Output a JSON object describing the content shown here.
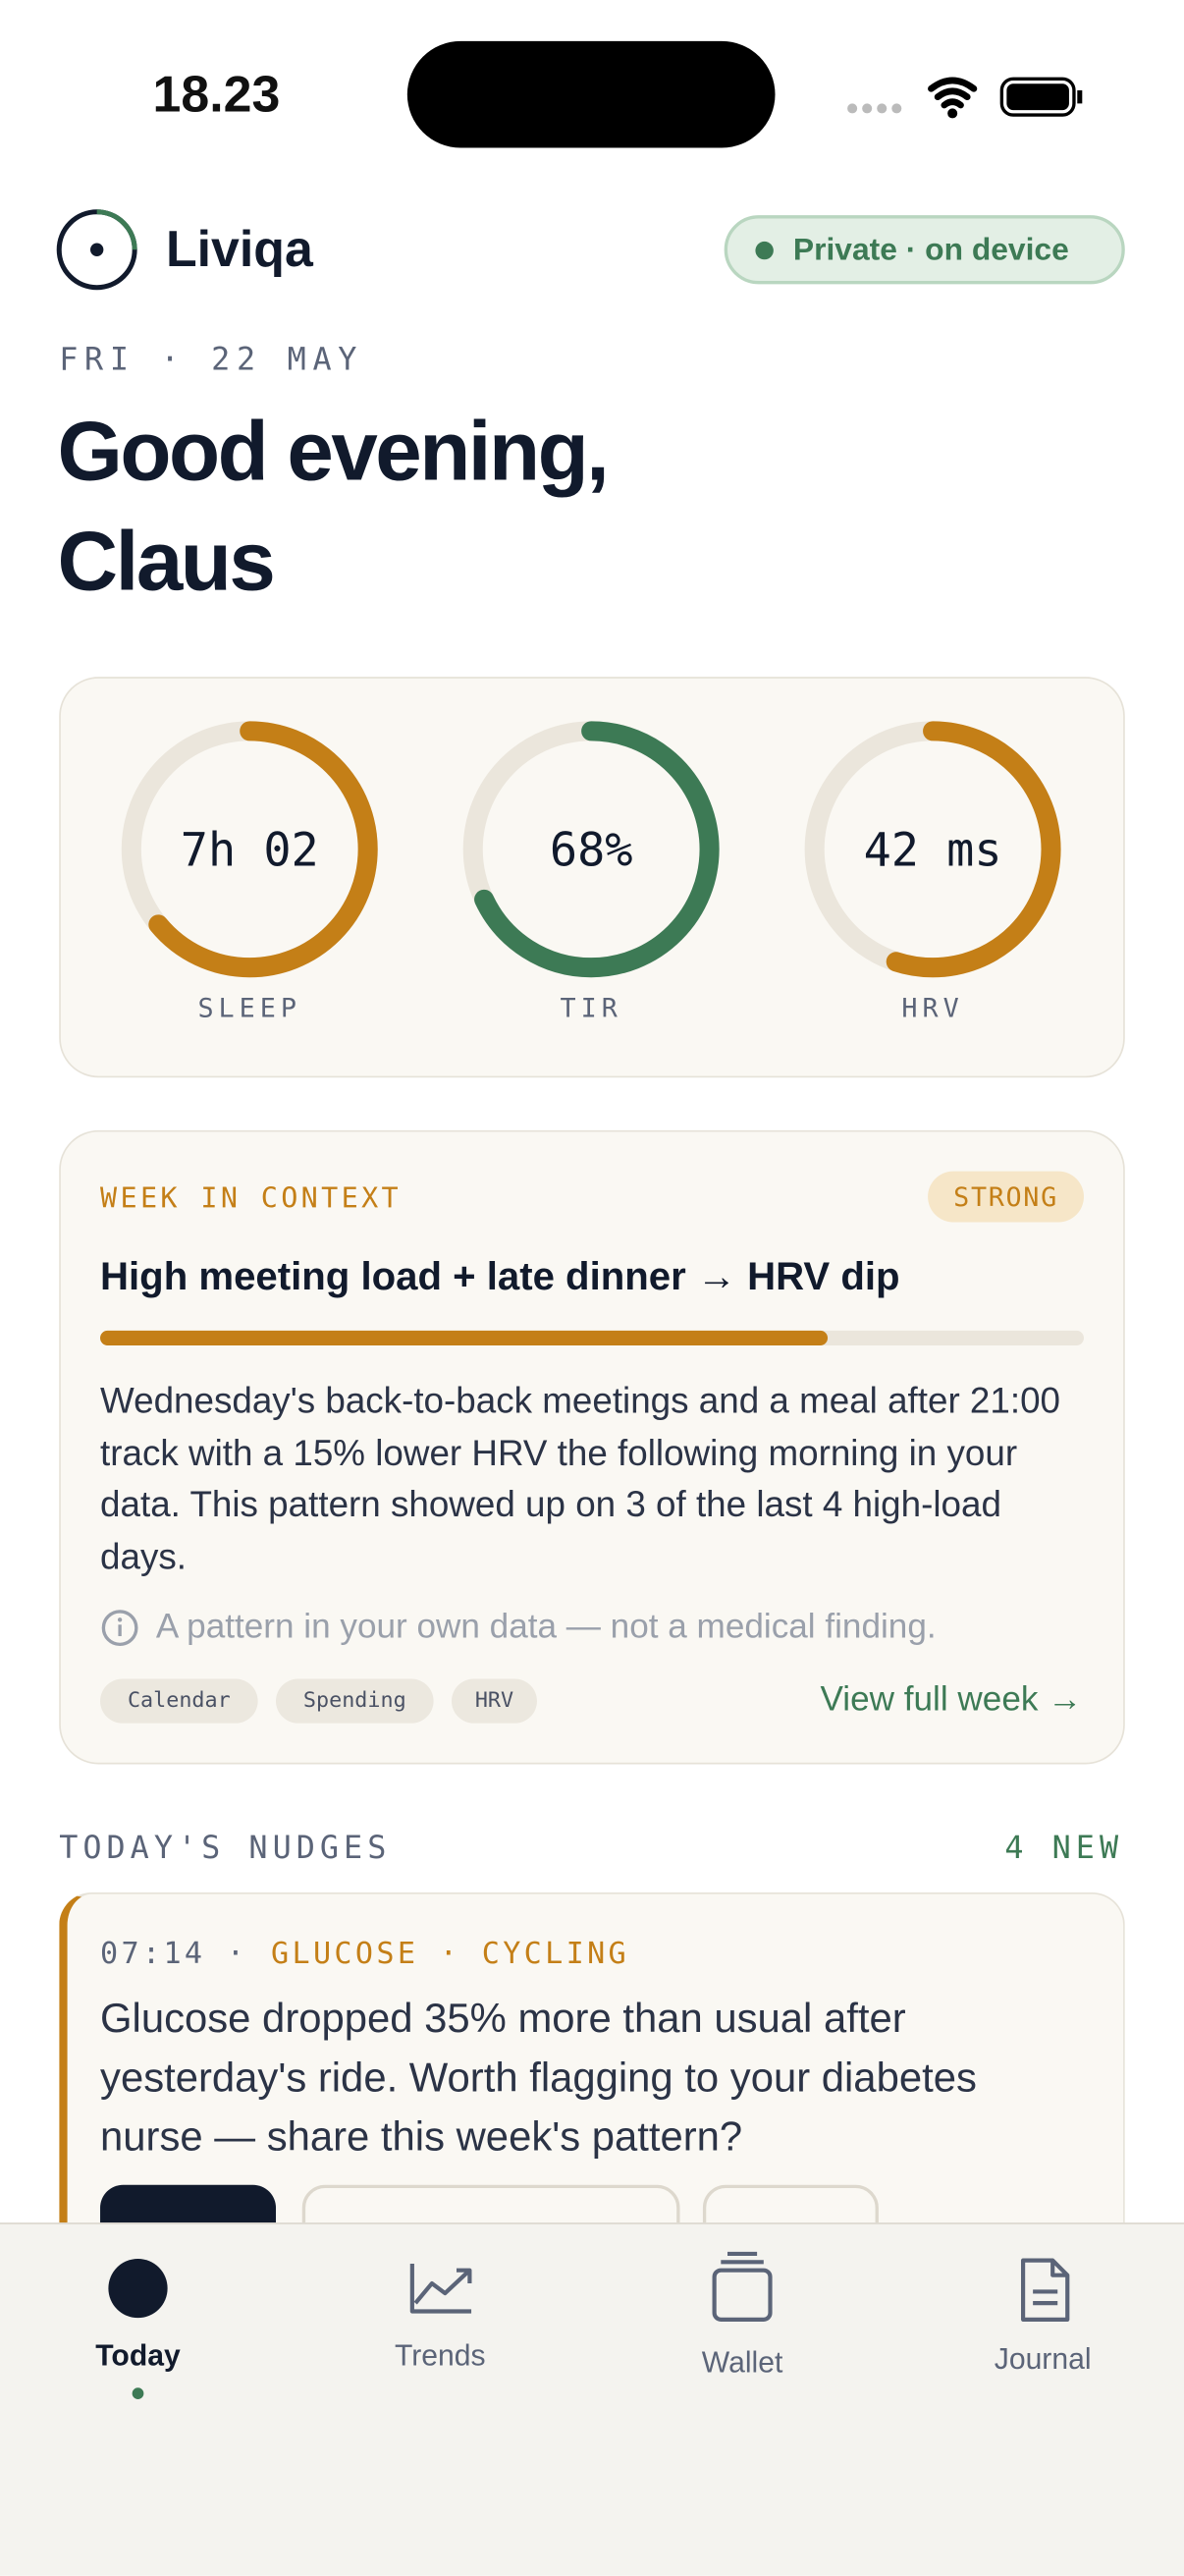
{
  "status_bar": {
    "time": "18.23"
  },
  "header": {
    "brand": "Liviqa",
    "privacy_badge": "Private · on device",
    "date": "FRI · 22 MAY",
    "greeting_line1": "Good evening,",
    "greeting_line2": "Claus"
  },
  "rings": [
    {
      "value": "7h 02",
      "label": "SLEEP",
      "progress": 0.64,
      "color": "#c47f17"
    },
    {
      "value": "68%",
      "label": "TIR",
      "progress": 0.68,
      "color": "#3d7a55"
    },
    {
      "value": "42 ms",
      "label": "HRV",
      "progress": 0.55,
      "color": "#c47f17"
    }
  ],
  "context_card": {
    "eyebrow": "WEEK IN CONTEXT",
    "strength": "STRONG",
    "title": "High meeting load + late dinner → HRV dip",
    "strength_progress": 0.74,
    "body": "Wednesday's back-to-back meetings and a meal after 21:00 track with a 15% lower HRV the following morning in your data. This pattern showed up on 3 of the last 4 high-load days.",
    "disclaimer": "A pattern in your own data — not a medical finding.",
    "sources": [
      "Calendar",
      "Spending",
      "HRV"
    ],
    "link": "View full week →"
  },
  "nudges": {
    "heading": "TODAY'S NUDGES",
    "count": "4 NEW",
    "items": [
      {
        "time": "07:14 ·",
        "topic": "GLUCOSE · CYCLING",
        "text": "Glucose dropped 35% more than usual after yesterday's ride. Worth flagging to your diabetes nurse — share this week's pattern?"
      }
    ]
  },
  "tab_bar": {
    "tabs": [
      "Today",
      "Trends",
      "Wallet",
      "Journal"
    ]
  }
}
